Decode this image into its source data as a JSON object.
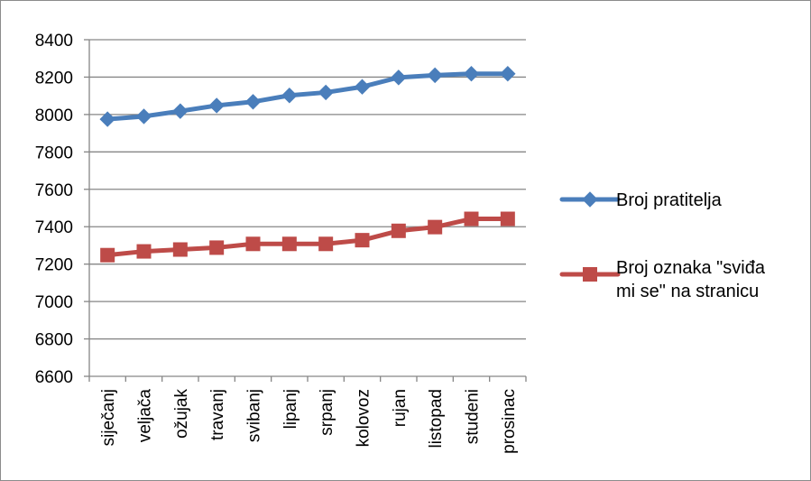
{
  "chart_data": {
    "type": "line",
    "categories": [
      "siječanj",
      "veljača",
      "ožujak",
      "travanj",
      "svibanj",
      "lipanj",
      "srpanj",
      "kolovoz",
      "rujan",
      "listopad",
      "studeni",
      "prosinac"
    ],
    "series": [
      {
        "name": "Broj pratitelja",
        "name_lines": [
          "Broj pratitelja"
        ],
        "color": "#4a7ebb",
        "marker": "diamond",
        "values": [
          7975,
          7990,
          8018,
          8048,
          8068,
          8102,
          8118,
          8148,
          8198,
          8210,
          8218,
          8218
        ]
      },
      {
        "name": "Broj oznaka \"sviđa mi se\" na stranicu",
        "name_lines": [
          "Broj oznaka \"sviđa",
          "mi se\" na stranicu"
        ],
        "color": "#be4b48",
        "marker": "square",
        "values": [
          7248,
          7268,
          7278,
          7288,
          7308,
          7308,
          7308,
          7328,
          7378,
          7398,
          7442,
          7442
        ]
      }
    ],
    "ylim": [
      6600,
      8400
    ],
    "yticks": [
      6600,
      6800,
      7000,
      7200,
      7400,
      7600,
      7800,
      8000,
      8200,
      8400
    ],
    "grid": true,
    "legend": "right",
    "title": "",
    "xlabel": "",
    "ylabel": ""
  }
}
